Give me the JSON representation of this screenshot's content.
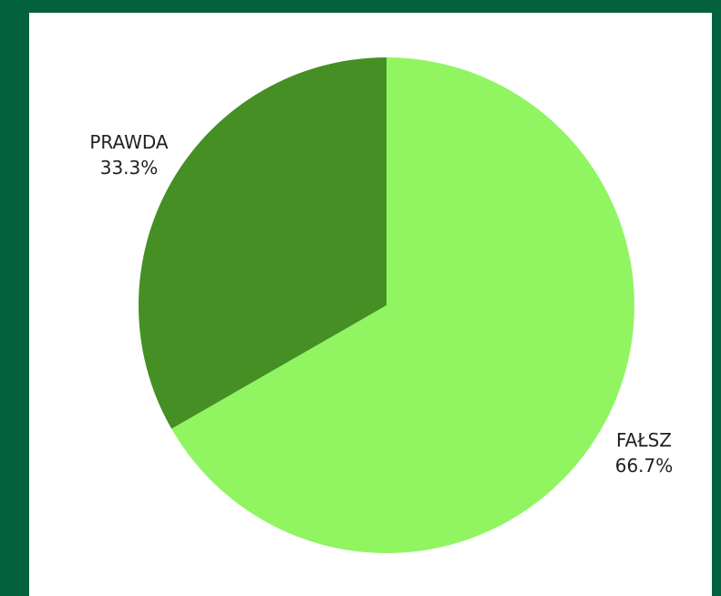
{
  "chart_data": {
    "type": "pie",
    "categories": [
      "FAŁSZ",
      "PRAWDA"
    ],
    "values": [
      66.7,
      33.3
    ],
    "value_labels": [
      "66.7%",
      "33.3%"
    ],
    "colors": [
      "#90f561",
      "#458f24"
    ],
    "start_angle": 0,
    "direction": "clockwise"
  }
}
